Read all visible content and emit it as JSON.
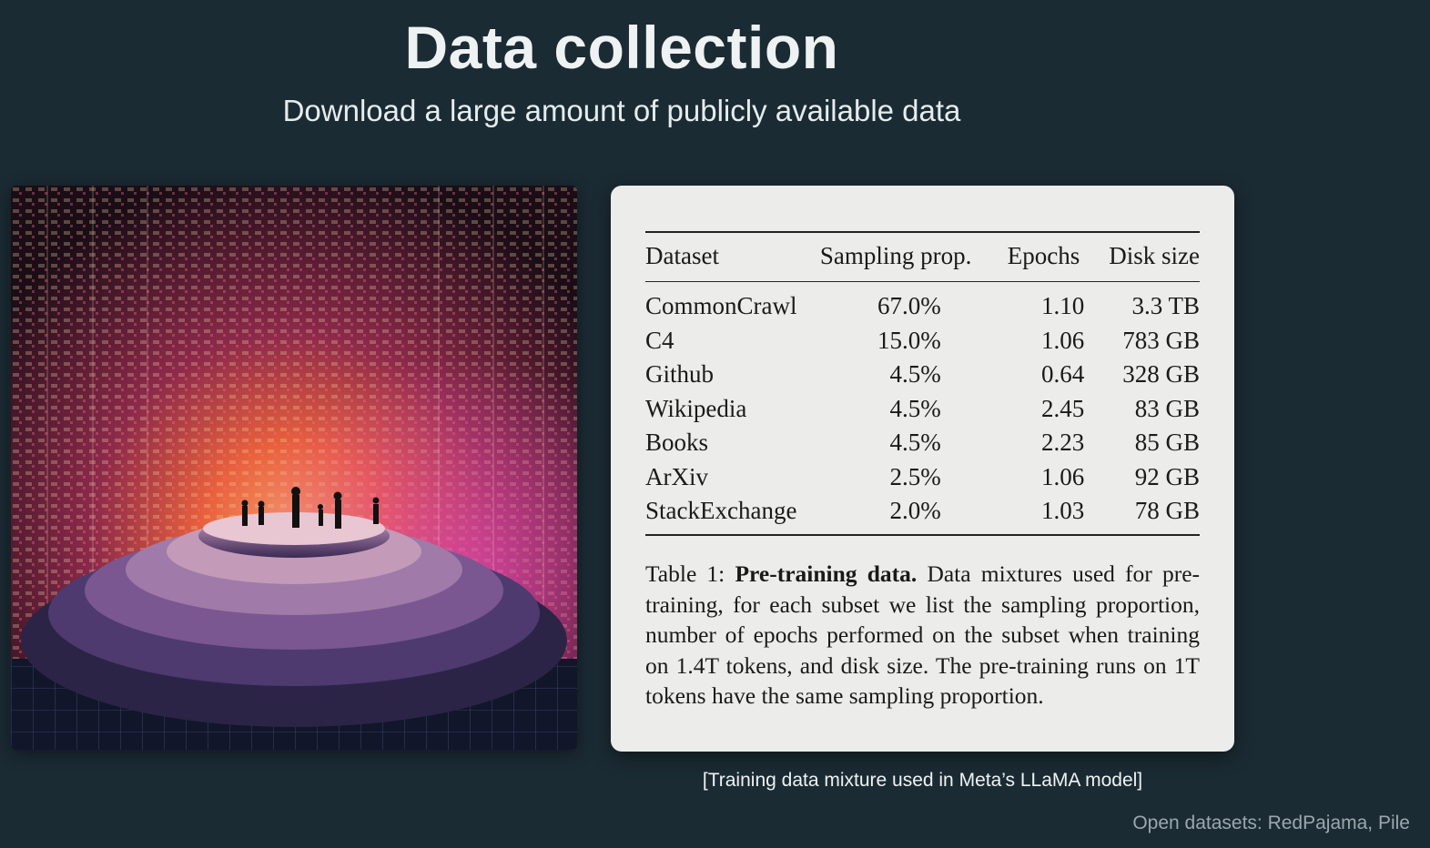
{
  "slide": {
    "title": "Data collection",
    "subtitle": "Download a large amount of publicly available data"
  },
  "illustration": {
    "icon": "data-center-illustration",
    "colors": {
      "glow": "#e8603c",
      "magenta": "#c2388a",
      "dark": "#1a0d16"
    }
  },
  "table": {
    "headers": [
      "Dataset",
      "Sampling prop.",
      "Epochs",
      "Disk size"
    ],
    "rows": [
      {
        "dataset": "CommonCrawl",
        "sampling": "67.0%",
        "epochs": "1.10",
        "disk": "3.3 TB"
      },
      {
        "dataset": "C4",
        "sampling": "15.0%",
        "epochs": "1.06",
        "disk": "783 GB"
      },
      {
        "dataset": "Github",
        "sampling": "4.5%",
        "epochs": "0.64",
        "disk": "328 GB"
      },
      {
        "dataset": "Wikipedia",
        "sampling": "4.5%",
        "epochs": "2.45",
        "disk": "83 GB"
      },
      {
        "dataset": "Books",
        "sampling": "4.5%",
        "epochs": "2.23",
        "disk": "85 GB"
      },
      {
        "dataset": "ArXiv",
        "sampling": "2.5%",
        "epochs": "1.06",
        "disk": "92 GB"
      },
      {
        "dataset": "StackExchange",
        "sampling": "2.0%",
        "epochs": "1.03",
        "disk": "78 GB"
      }
    ],
    "caption_label": "Table 1:",
    "caption_bold": "Pre-training data.",
    "caption_text": "Data mixtures used for pre-training, for each subset we list the sampling proportion, number of epochs performed on the subset when training on 1.4T tokens, and disk size. The pre-training runs on 1T tokens have the same sampling proportion."
  },
  "source_note": "[Training data mixture used in Meta’s LLaMA model]",
  "footer_note": "Open datasets: RedPajama, Pile"
}
